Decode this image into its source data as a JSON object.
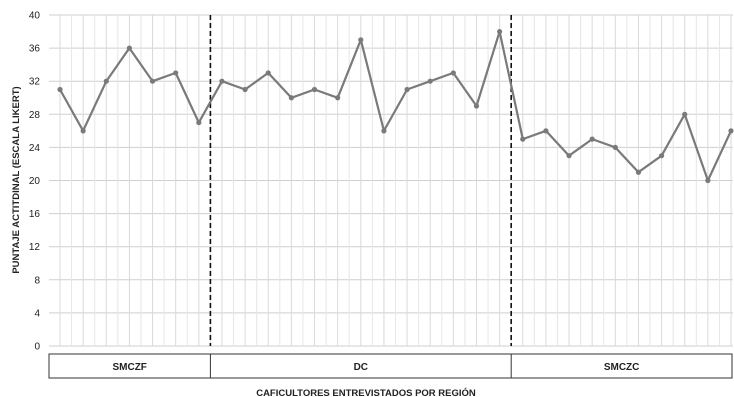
{
  "chart_data": {
    "type": "line",
    "title": "",
    "xlabel": "CAFICULTORES ENTREVISTADOS POR REGIÓN",
    "ylabel": "PUNTAJE ACTITDINAL (ESCALA LIKERT)",
    "ylim": [
      0,
      40
    ],
    "yticks": [
      "0",
      "4",
      "8",
      "12",
      "16",
      "20",
      "24",
      "28",
      "32",
      "36",
      "40"
    ],
    "grid": true,
    "legend": "none",
    "line_color": "#7a7a7a",
    "regions": [
      {
        "name": "SMCZF",
        "start": 1,
        "end": 7
      },
      {
        "name": "DC",
        "start": 8,
        "end": 20
      },
      {
        "name": "SMCZC",
        "start": 21,
        "end": 30
      }
    ],
    "series": [
      {
        "values": [
          31,
          26,
          32,
          36,
          32,
          33,
          27,
          32,
          31,
          33,
          30,
          31,
          30,
          37,
          26,
          31,
          32,
          33,
          29,
          38,
          25,
          26,
          23,
          25,
          24,
          21,
          23,
          28,
          20,
          26
        ]
      }
    ]
  }
}
